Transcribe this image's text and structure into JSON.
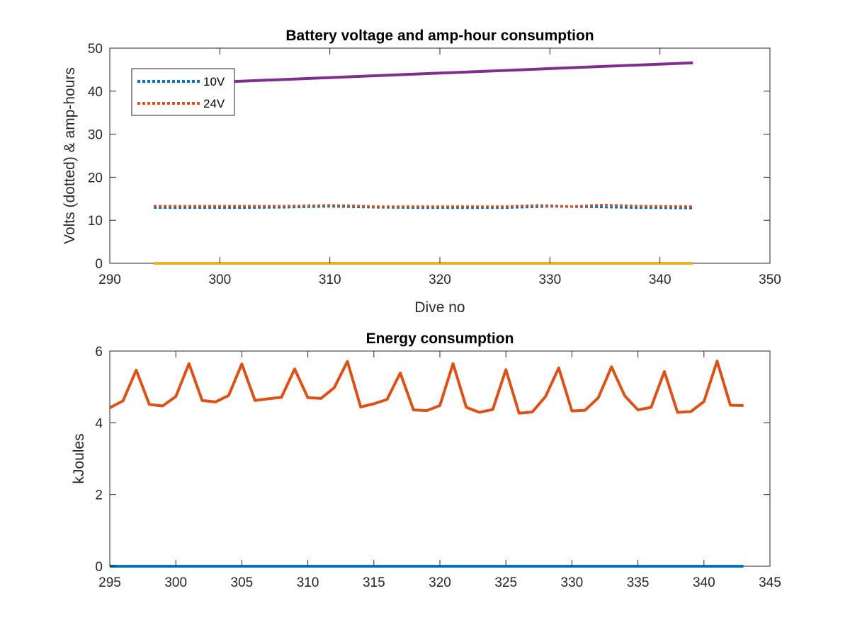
{
  "chart_data": [
    {
      "type": "line",
      "title": "Battery voltage and amp-hour consumption",
      "xlabel": "Dive no",
      "ylabel": "Volts (dotted) & amp-hours",
      "xlim": [
        290,
        350
      ],
      "ylim": [
        0,
        50
      ],
      "xticks": [
        "290",
        "300",
        "310",
        "320",
        "330",
        "340",
        "350"
      ],
      "yticks": [
        "0",
        "10",
        "20",
        "30",
        "40",
        "50"
      ],
      "legend": {
        "placement": "top-left",
        "entries": [
          {
            "label": "10V",
            "series_index": 0
          },
          {
            "label": "24V",
            "series_index": 1
          }
        ]
      },
      "series": [
        {
          "name": "10V",
          "style": "dotted",
          "color": "#0072BD",
          "x": [
            294,
            298,
            302,
            306,
            310,
            314,
            318,
            322,
            326,
            330,
            334,
            338,
            343
          ],
          "y": [
            12.9,
            12.9,
            12.9,
            13.0,
            13.2,
            13.0,
            12.9,
            12.9,
            12.9,
            13.2,
            13.1,
            12.9,
            12.8
          ]
        },
        {
          "name": "24V",
          "style": "dotted",
          "color": "#D95319",
          "x": [
            294,
            298,
            302,
            306,
            310,
            312,
            314,
            318,
            322,
            326,
            329,
            332,
            335,
            338,
            343
          ],
          "y": [
            13.3,
            13.3,
            13.3,
            13.3,
            13.5,
            13.4,
            13.2,
            13.2,
            13.2,
            13.2,
            13.5,
            13.2,
            13.6,
            13.3,
            13.2
          ]
        },
        {
          "style": "solid",
          "color": "#7E2F8E",
          "x": [
            299,
            343
          ],
          "y": [
            42.0,
            46.6
          ]
        },
        {
          "style": "solid",
          "color": "#EDB120",
          "x": [
            294,
            343
          ],
          "y": [
            0,
            0
          ]
        }
      ]
    },
    {
      "type": "line",
      "title": "Energy consumption",
      "xlabel": "",
      "ylabel": "kJoules",
      "xlim": [
        295,
        345
      ],
      "ylim": [
        0,
        6
      ],
      "xticks": [
        "295",
        "300",
        "305",
        "310",
        "315",
        "320",
        "325",
        "330",
        "335",
        "340",
        "345"
      ],
      "yticks": [
        "0",
        "2",
        "4",
        "6"
      ],
      "series": [
        {
          "style": "solid",
          "color": "#0072BD",
          "x": [
            295,
            343
          ],
          "y": [
            0,
            0
          ]
        },
        {
          "style": "solid",
          "color": "#D95319",
          "x": [
            295,
            296,
            297,
            298,
            299,
            300,
            301,
            302,
            303,
            304,
            305,
            306,
            307,
            308,
            309,
            310,
            311,
            312,
            313,
            314,
            315,
            316,
            317,
            318,
            319,
            320,
            321,
            322,
            323,
            324,
            325,
            326,
            327,
            328,
            329,
            330,
            331,
            332,
            333,
            334,
            335,
            336,
            337,
            338,
            339,
            340,
            341,
            342,
            343
          ],
          "y": [
            4.42,
            4.61,
            5.47,
            4.51,
            4.47,
            4.73,
            5.65,
            4.62,
            4.58,
            4.76,
            5.64,
            4.62,
            4.67,
            4.71,
            5.5,
            4.7,
            4.68,
            4.98,
            5.71,
            4.44,
            4.53,
            4.65,
            5.39,
            4.36,
            4.34,
            4.48,
            5.65,
            4.43,
            4.29,
            4.37,
            5.48,
            4.27,
            4.3,
            4.73,
            5.53,
            4.33,
            4.35,
            4.7,
            5.56,
            4.75,
            4.36,
            4.43,
            5.43,
            4.29,
            4.31,
            4.59,
            5.72,
            4.49,
            4.48
          ]
        }
      ]
    }
  ]
}
